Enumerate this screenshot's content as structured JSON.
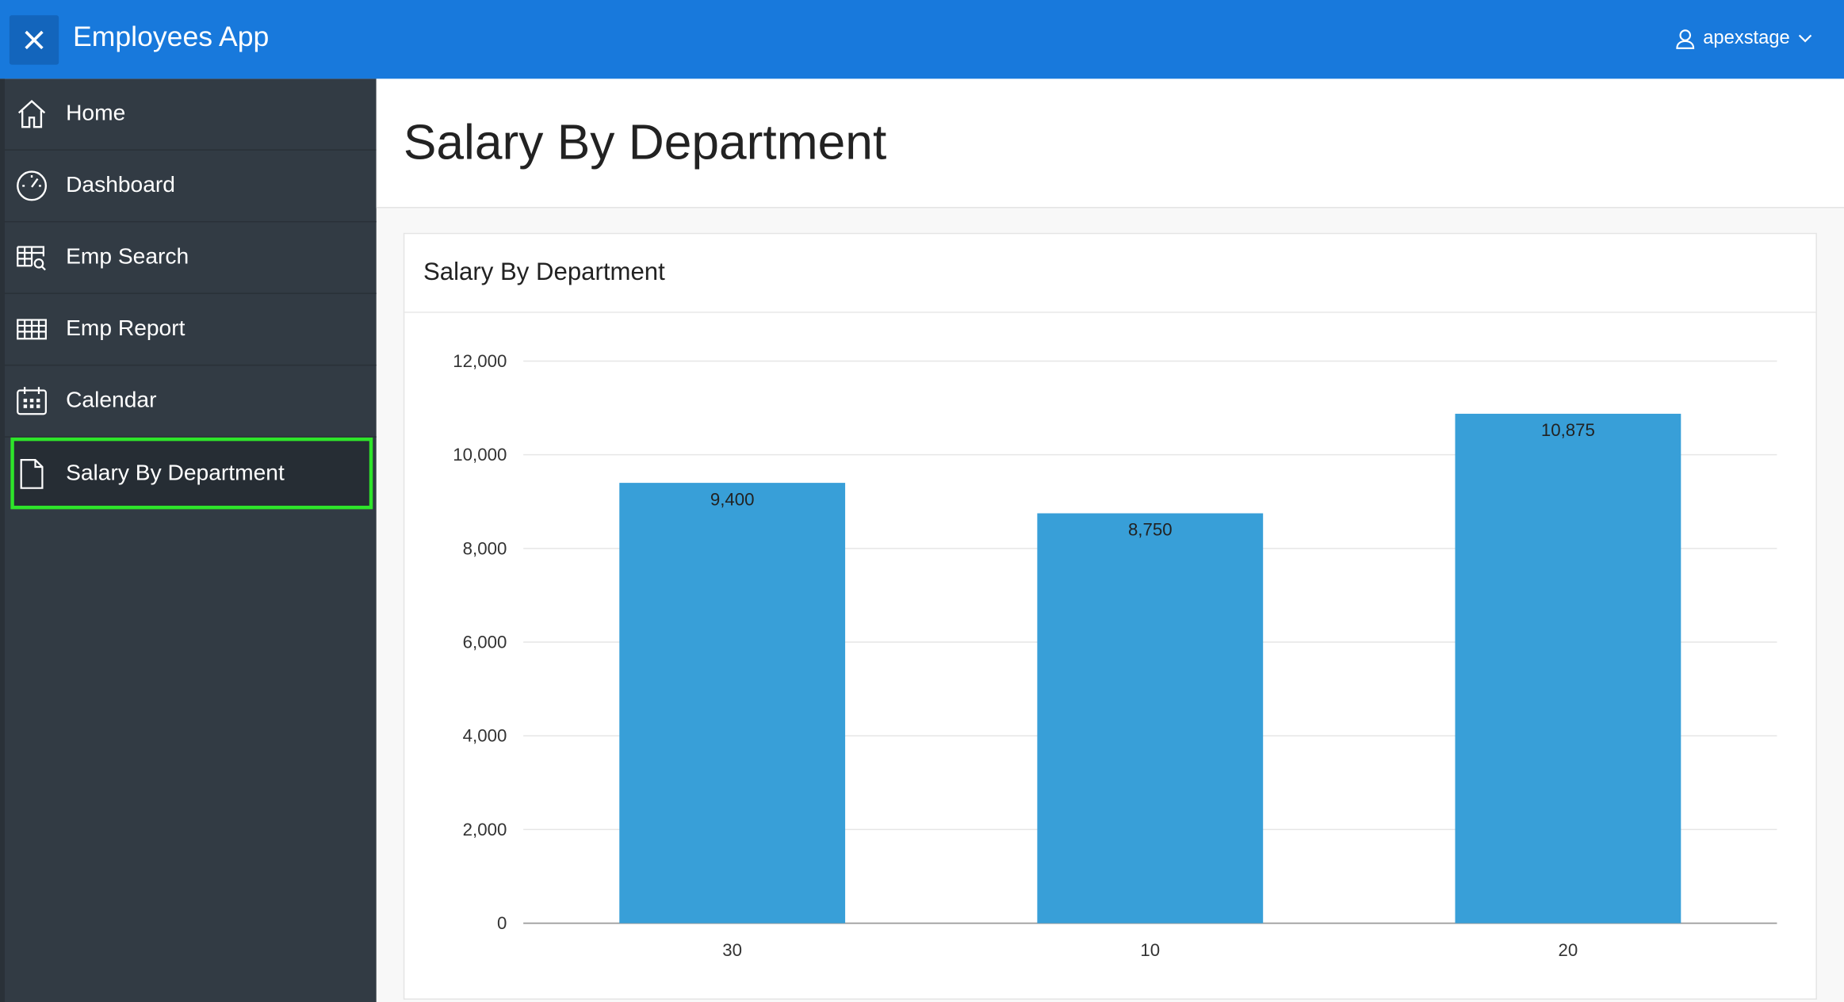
{
  "header": {
    "app_title": "Employees App",
    "user": "apexstage",
    "close_icon": "close-icon"
  },
  "sidebar": {
    "items": [
      {
        "label": "Home",
        "icon": "home-icon"
      },
      {
        "label": "Dashboard",
        "icon": "dashboard-icon"
      },
      {
        "label": "Emp Search",
        "icon": "table-search-icon"
      },
      {
        "label": "Emp Report",
        "icon": "table-icon"
      },
      {
        "label": "Calendar",
        "icon": "calendar-icon"
      },
      {
        "label": "Salary By Department",
        "icon": "page-icon",
        "active": true
      }
    ]
  },
  "page": {
    "title": "Salary By Department"
  },
  "card": {
    "title": "Salary By Department"
  },
  "colors": {
    "header": "#1879dc",
    "sidebar": "#323b44",
    "bar": "#389fd8",
    "active_outline": "#2ee52a"
  },
  "chart_data": {
    "type": "bar",
    "title": "Salary By Department",
    "categories": [
      "30",
      "10",
      "20"
    ],
    "values": [
      9400,
      8750,
      10875
    ],
    "value_labels": [
      "9,400",
      "8,750",
      "10,875"
    ],
    "yticks": [
      0,
      2000,
      4000,
      6000,
      8000,
      10000,
      12000
    ],
    "ytick_labels": [
      "0",
      "2,000",
      "4,000",
      "6,000",
      "8,000",
      "10,000",
      "12,000"
    ],
    "ylim": [
      0,
      12000
    ],
    "grid": true,
    "xlabel": "",
    "ylabel": ""
  }
}
